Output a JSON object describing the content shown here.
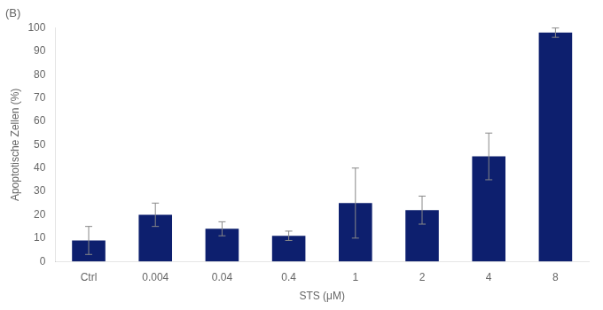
{
  "chart_data": {
    "type": "bar",
    "title": "(B)",
    "categories": [
      "Ctrl",
      "0.004",
      "0.04",
      "0.4",
      "1",
      "2",
      "4",
      "8"
    ],
    "values": [
      9,
      20,
      14,
      11,
      25,
      22,
      45,
      98
    ],
    "errors": [
      6,
      5,
      3,
      2,
      15,
      6,
      10,
      2
    ],
    "color": "#0d1f6e",
    "xlabel": "STS (μM)",
    "ylabel": "Apoptotische Zellen (%)",
    "ylim": [
      0,
      100
    ],
    "yticks": [
      0,
      10,
      20,
      30,
      40,
      50,
      60,
      70,
      80,
      90,
      100
    ],
    "grid": false
  }
}
